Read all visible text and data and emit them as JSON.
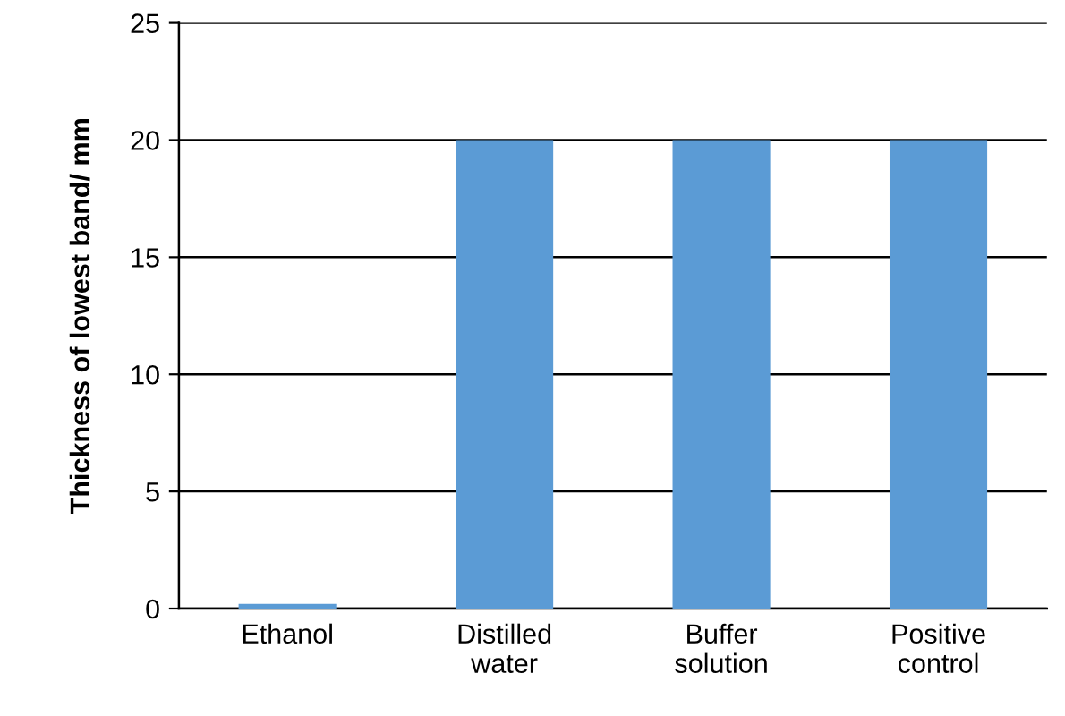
{
  "chart_data": {
    "type": "bar",
    "ylabel": "Thickness of lowest band/ mm",
    "categories": [
      "Ethanol",
      "Distilled\nwater",
      "Buffer\nsolution",
      "Positive\ncontrol"
    ],
    "values": [
      0.2,
      20,
      20,
      20
    ],
    "color": "#5b9bd5",
    "ylim": [
      0,
      25
    ],
    "yticks": [
      0,
      5,
      10,
      15,
      20,
      25
    ],
    "grid": "y",
    "legend": false
  }
}
